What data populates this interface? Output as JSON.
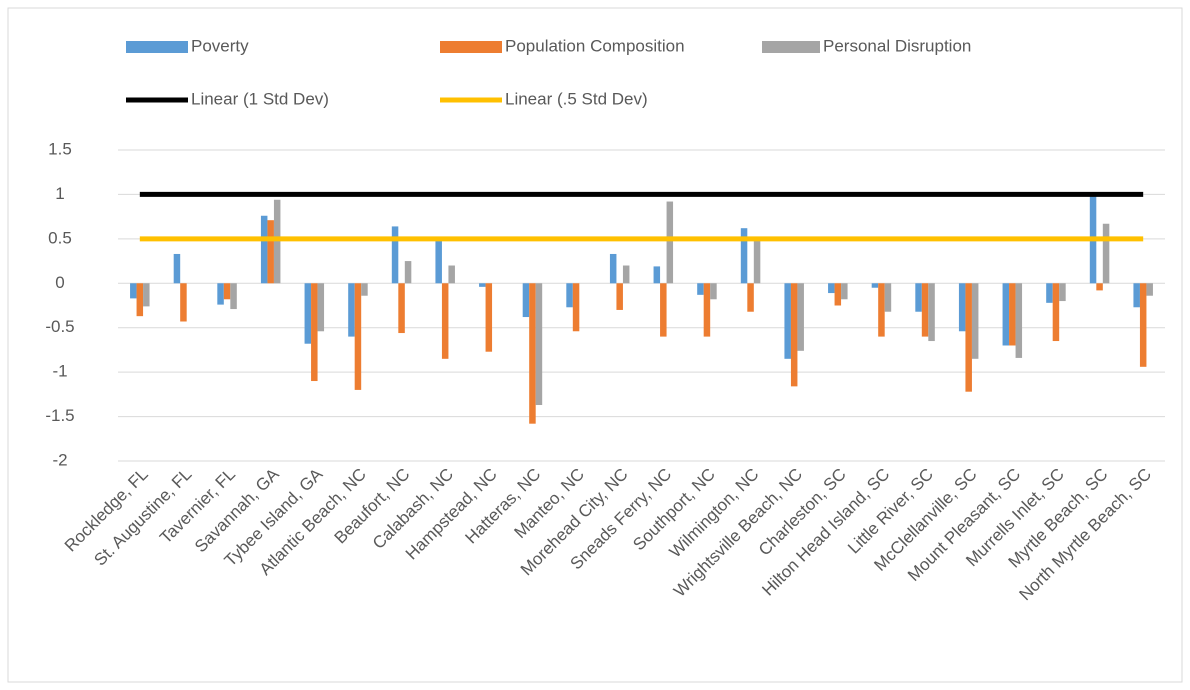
{
  "chart_data": {
    "type": "bar",
    "categories": [
      "Rockledge, FL",
      "St. Augustine, FL",
      "Tavernier, FL",
      "Savannah, GA",
      "Tybee Island, GA",
      "Atlantic Beach, NC",
      "Beaufort, NC",
      "Calabash, NC",
      "Hampstead, NC",
      "Hatteras, NC",
      "Manteo, NC",
      "Morehead City, NC",
      "Sneads Ferry, NC",
      "Southport, NC",
      "Wilmington, NC",
      "Wrightsville Beach, NC",
      "Charleston, SC",
      "Hilton Head Island, SC",
      "Little River, SC",
      "McClellanville, SC",
      "Mount Pleasant, SC",
      "Murrells Inlet, SC",
      "Myrtle Beach, SC",
      "North Myrtle Beach, SC"
    ],
    "series": [
      {
        "name": "Poverty",
        "type": "bar",
        "color": "#5b9bd5",
        "values": [
          -0.17,
          0.33,
          -0.24,
          0.76,
          -0.68,
          -0.6,
          0.64,
          0.49,
          -0.04,
          -0.38,
          -0.27,
          0.33,
          0.19,
          -0.13,
          0.62,
          -0.85,
          -0.11,
          -0.05,
          -0.32,
          -0.54,
          -0.7,
          -0.22,
          0.98,
          -0.27
        ]
      },
      {
        "name": "Population Composition",
        "type": "bar",
        "color": "#ed7d31",
        "values": [
          -0.37,
          -0.43,
          -0.18,
          0.71,
          -1.1,
          -1.2,
          -0.56,
          -0.85,
          -0.77,
          -1.58,
          -0.54,
          -0.3,
          -0.6,
          -0.6,
          -0.32,
          -1.16,
          -0.25,
          -0.6,
          -0.6,
          -1.22,
          -0.7,
          -0.65,
          -0.08,
          -0.94
        ]
      },
      {
        "name": "Personal Disruption",
        "type": "bar",
        "color": "#a5a5a5",
        "values": [
          -0.26,
          0,
          -0.29,
          0.94,
          -0.54,
          -0.14,
          0.25,
          0.2,
          0,
          -1.37,
          0,
          0.2,
          0.92,
          -0.18,
          0.48,
          -0.76,
          -0.18,
          -0.32,
          -0.65,
          -0.85,
          -0.84,
          -0.2,
          0.67,
          -0.14
        ]
      },
      {
        "name": "Linear (1 Std Dev)",
        "type": "line",
        "color": "#000000",
        "values": [
          1,
          1,
          1,
          1,
          1,
          1,
          1,
          1,
          1,
          1,
          1,
          1,
          1,
          1,
          1,
          1,
          1,
          1,
          1,
          1,
          1,
          1,
          1,
          1
        ]
      },
      {
        "name": "Linear (.5 Std Dev)",
        "type": "line",
        "color": "#ffc000",
        "values": [
          0.5,
          0.5,
          0.5,
          0.5,
          0.5,
          0.5,
          0.5,
          0.5,
          0.5,
          0.5,
          0.5,
          0.5,
          0.5,
          0.5,
          0.5,
          0.5,
          0.5,
          0.5,
          0.5,
          0.5,
          0.5,
          0.5,
          0.5,
          0.5
        ]
      }
    ],
    "ylim": [
      -2,
      1.5
    ],
    "yticks": [
      -2,
      -1.5,
      -1,
      -0.5,
      0,
      0.5,
      1,
      1.5
    ],
    "grid": true,
    "legend": "top"
  }
}
